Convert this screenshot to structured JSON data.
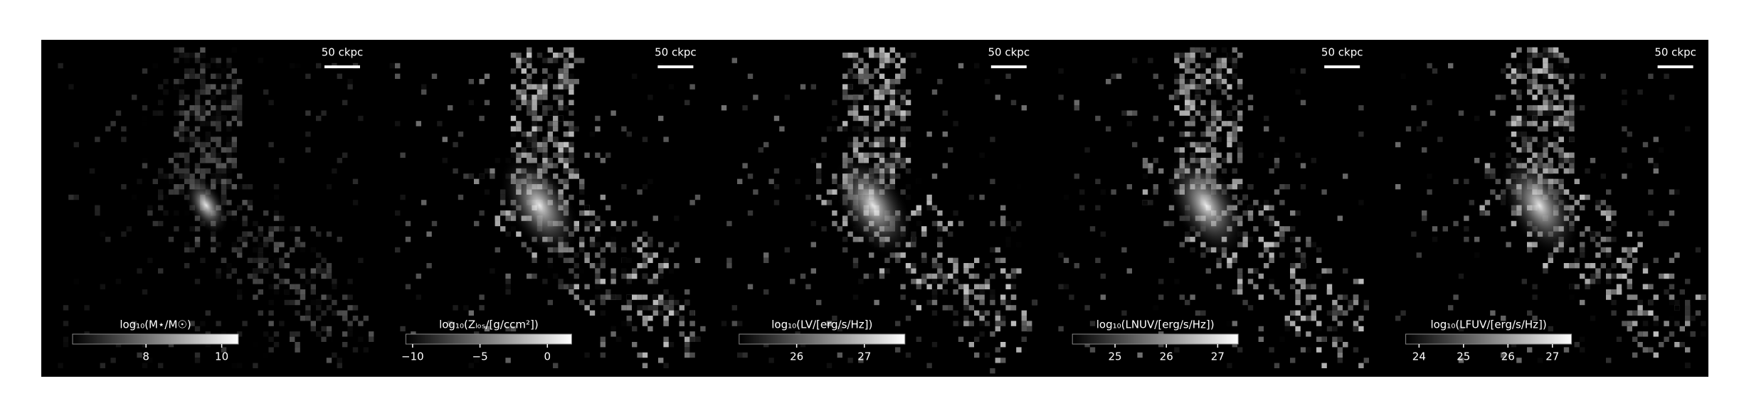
{
  "chart_data": {
    "type": "image-grid",
    "colormap": [
      "#000000",
      "#ffffff"
    ],
    "panels": [
      {
        "label": "log₁₀(M⋆/M☉)",
        "clim": [
          6.06,
          10.44
        ],
        "ticks": [
          8,
          10
        ],
        "scale_bar": "50 ckpc"
      },
      {
        "label": "log₁₀(Zₗₒₛ/[g/ccm²])",
        "clim": [
          -10.5,
          1.8
        ],
        "ticks": [
          {
            "value": -10,
            "label": "−10"
          },
          {
            "value": -5,
            "label": "−5"
          },
          0
        ],
        "scale_bar": "50 ckpc"
      },
      {
        "label": "log₁₀(LV/[erg/s/Hz])",
        "clim": [
          25.15,
          27.6
        ],
        "ticks": [
          26,
          27
        ],
        "scale_bar": "50 ckpc"
      },
      {
        "label": "log₁₀(LNUV/[erg/s/Hz])",
        "clim": [
          24.17,
          27.4
        ],
        "ticks": [
          25,
          26,
          27
        ],
        "scale_bar": "50 ckpc"
      },
      {
        "label": "log₁₀(LFUV/[erg/s/Hz])",
        "clim": [
          23.7,
          27.43
        ],
        "ticks": [
          24,
          25,
          26,
          27
        ],
        "scale_bar": "50 ckpc"
      }
    ]
  }
}
